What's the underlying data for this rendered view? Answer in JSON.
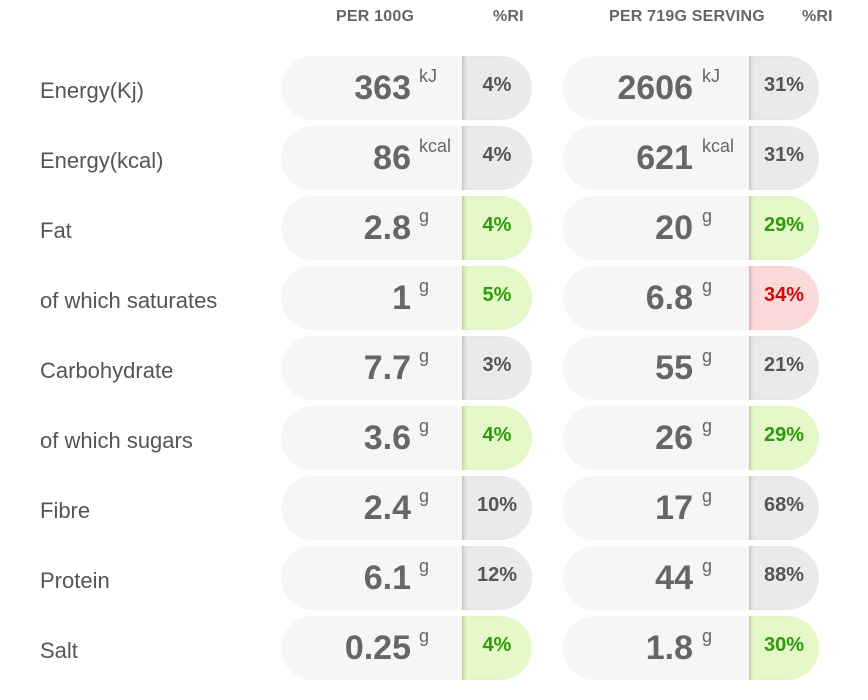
{
  "headers": {
    "per100": "PER 100G",
    "ri1": "%RI",
    "serving": "PER 719G SERVING",
    "ri2": "%RI"
  },
  "colors": {
    "grey": "#eaeaea",
    "green": "#e4f8c8",
    "green_text": "#2e9a0c",
    "red": "#fddada",
    "red_text": "#d10a0a"
  },
  "rows": [
    {
      "label": "Energy(Kj)",
      "per100": "363",
      "unit": "kJ",
      "ri100": "4%",
      "ri100_level": "grey",
      "serving": "2606",
      "serving_unit": "kJ",
      "ri_serving": "31%",
      "ri_serving_level": "grey"
    },
    {
      "label": "Energy(kcal)",
      "per100": "86",
      "unit": "kcal",
      "ri100": "4%",
      "ri100_level": "grey",
      "serving": "621",
      "serving_unit": "kcal",
      "ri_serving": "31%",
      "ri_serving_level": "grey"
    },
    {
      "label": "Fat",
      "per100": "2.8",
      "unit": "g",
      "ri100": "4%",
      "ri100_level": "green",
      "serving": "20",
      "serving_unit": "g",
      "ri_serving": "29%",
      "ri_serving_level": "green"
    },
    {
      "label": "of which saturates",
      "per100": "1",
      "unit": "g",
      "ri100": "5%",
      "ri100_level": "green",
      "serving": "6.8",
      "serving_unit": "g",
      "ri_serving": "34%",
      "ri_serving_level": "red"
    },
    {
      "label": "Carbohydrate",
      "per100": "7.7",
      "unit": "g",
      "ri100": "3%",
      "ri100_level": "grey",
      "serving": "55",
      "serving_unit": "g",
      "ri_serving": "21%",
      "ri_serving_level": "grey"
    },
    {
      "label": "of which sugars",
      "per100": "3.6",
      "unit": "g",
      "ri100": "4%",
      "ri100_level": "green",
      "serving": "26",
      "serving_unit": "g",
      "ri_serving": "29%",
      "ri_serving_level": "green"
    },
    {
      "label": "Fibre",
      "per100": "2.4",
      "unit": "g",
      "ri100": "10%",
      "ri100_level": "grey",
      "serving": "17",
      "serving_unit": "g",
      "ri_serving": "68%",
      "ri_serving_level": "grey"
    },
    {
      "label": "Protein",
      "per100": "6.1",
      "unit": "g",
      "ri100": "12%",
      "ri100_level": "grey",
      "serving": "44",
      "serving_unit": "g",
      "ri_serving": "88%",
      "ri_serving_level": "grey"
    },
    {
      "label": "Salt",
      "per100": "0.25",
      "unit": "g",
      "ri100": "4%",
      "ri100_level": "green",
      "serving": "1.8",
      "serving_unit": "g",
      "ri_serving": "30%",
      "ri_serving_level": "green"
    }
  ]
}
